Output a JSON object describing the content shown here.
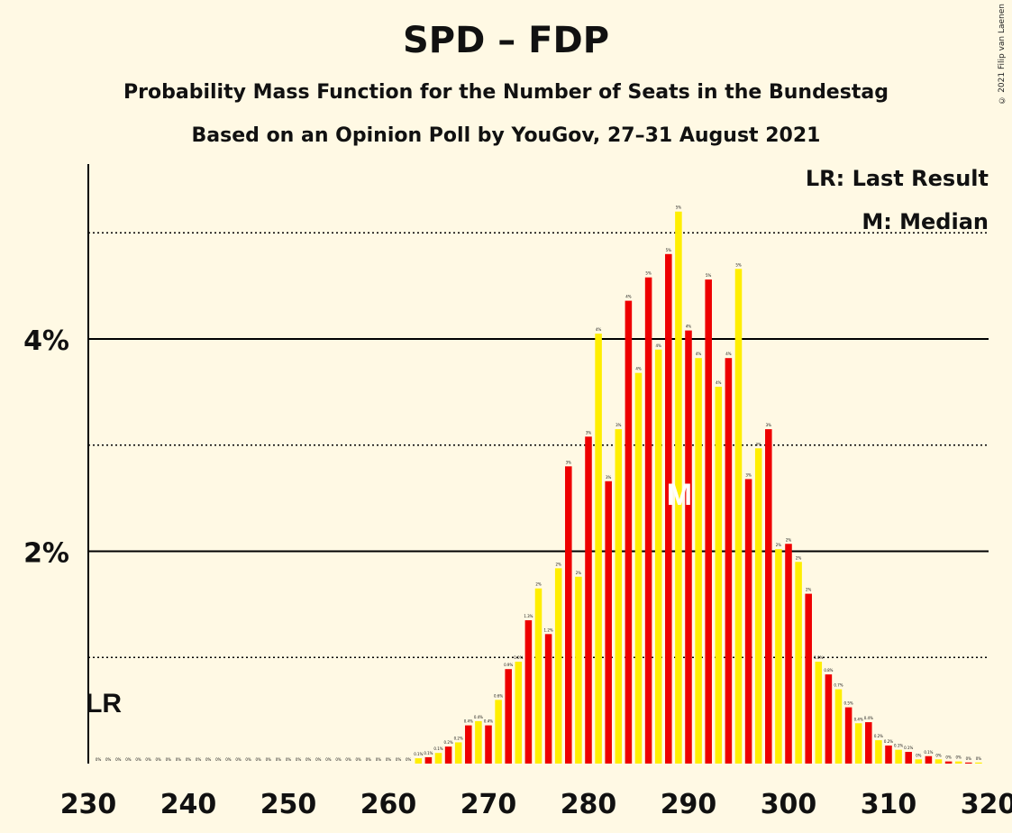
{
  "title": "SPD – FDP",
  "subtitle1": "Probability Mass Function for the Number of Seats in the Bundestag",
  "subtitle2": "Based on an Opinion Poll by YouGov, 27–31 August 2021",
  "copyright": "© 2021 Filip van Laenen",
  "legend": {
    "lr": "LR: Last Result",
    "median": "M: Median"
  },
  "markers": {
    "lr_label": "LR",
    "median_label": "M"
  },
  "colors": {
    "background": "#FFF9E4",
    "red": "#EE0000",
    "yellow": "#FFEE00",
    "axis": "#000000",
    "median_text": "#FFFFFF"
  },
  "chart_data": {
    "type": "bar",
    "xlabel": "",
    "ylabel": "",
    "xlim": [
      230,
      320
    ],
    "ylim": [
      0,
      5.6
    ],
    "x_ticks": [
      230,
      240,
      250,
      260,
      270,
      280,
      290,
      300,
      310,
      320
    ],
    "y_ticks": [
      {
        "value": 2,
        "label": "2%"
      },
      {
        "value": 4,
        "label": "4%"
      }
    ],
    "gridlines": {
      "solid": [
        2,
        4
      ],
      "dotted": [
        1,
        3,
        5
      ]
    },
    "last_result_seat": 231,
    "median_seat": 289,
    "data_labels_unit": "%",
    "seats": [
      231,
      232,
      233,
      234,
      235,
      236,
      237,
      238,
      239,
      240,
      241,
      242,
      243,
      244,
      245,
      246,
      247,
      248,
      249,
      250,
      251,
      252,
      253,
      254,
      255,
      256,
      257,
      258,
      259,
      260,
      261,
      262,
      263,
      264,
      265,
      266,
      267,
      268,
      269,
      270,
      271,
      272,
      273,
      274,
      275,
      276,
      277,
      278,
      279,
      280,
      281,
      282,
      283,
      284,
      285,
      286,
      287,
      288,
      289,
      290,
      291,
      292,
      293,
      294,
      295,
      296,
      297,
      298,
      299,
      300,
      301,
      302,
      303,
      304,
      305,
      306,
      307,
      308,
      309,
      310,
      311,
      312,
      313,
      314,
      315,
      316,
      317,
      318,
      319
    ],
    "values": [
      0,
      0,
      0,
      0,
      0,
      0,
      0,
      0,
      0,
      0,
      0,
      0,
      0,
      0,
      0,
      0,
      0,
      0,
      0,
      0,
      0,
      0,
      0,
      0,
      0,
      0,
      0,
      0,
      0,
      0,
      0,
      0,
      0.05,
      0.06,
      0.1,
      0.16,
      0.2,
      0.36,
      0.4,
      0.36,
      0.6,
      0.89,
      0.96,
      1.35,
      1.65,
      1.22,
      1.84,
      2.8,
      1.76,
      3.08,
      4.05,
      2.66,
      3.15,
      4.36,
      3.68,
      4.58,
      3.9,
      4.8,
      5.2,
      4.08,
      3.82,
      4.56,
      3.55,
      3.82,
      4.66,
      2.68,
      2.97,
      3.15,
      2.02,
      2.07,
      1.9,
      1.6,
      0.96,
      0.84,
      0.7,
      0.53,
      0.38,
      0.39,
      0.22,
      0.17,
      0.13,
      0.11,
      0.04,
      0.07,
      0.04,
      0.02,
      0.02,
      0.01,
      0.01
    ],
    "labels": [
      "0%",
      "0%",
      "0%",
      "0%",
      "0%",
      "0%",
      "0%",
      "0%",
      "0%",
      "0%",
      "0%",
      "0%",
      "0%",
      "0%",
      "0%",
      "0%",
      "0%",
      "0%",
      "0%",
      "0%",
      "0%",
      "0%",
      "0%",
      "0%",
      "0%",
      "0%",
      "0%",
      "0%",
      "0%",
      "0%",
      "0%",
      "0%",
      "0.1%",
      "0.1%",
      "0.1%",
      "0.2%",
      "0.2%",
      "0.4%",
      "0.4%",
      "0.4%",
      "0.6%",
      "0.9%",
      "1.0%",
      "1.3%",
      "2%",
      "1.2%",
      "2%",
      "3%",
      "2%",
      "3%",
      "4%",
      "3%",
      "3%",
      "4%",
      "4%",
      "5%",
      "4%",
      "5%",
      "5%",
      "4%",
      "4%",
      "5%",
      "4%",
      "4%",
      "5%",
      "3%",
      "3%",
      "3%",
      "2%",
      "2%",
      "2%",
      "2%",
      "1.0%",
      "0.8%",
      "0.7%",
      "0.5%",
      "0.4%",
      "0.4%",
      "0.2%",
      "0.2%",
      "0.1%",
      "0.1%",
      "0%",
      "0.1%",
      "0%",
      "0%",
      "0%",
      "0%",
      "0%"
    ]
  }
}
